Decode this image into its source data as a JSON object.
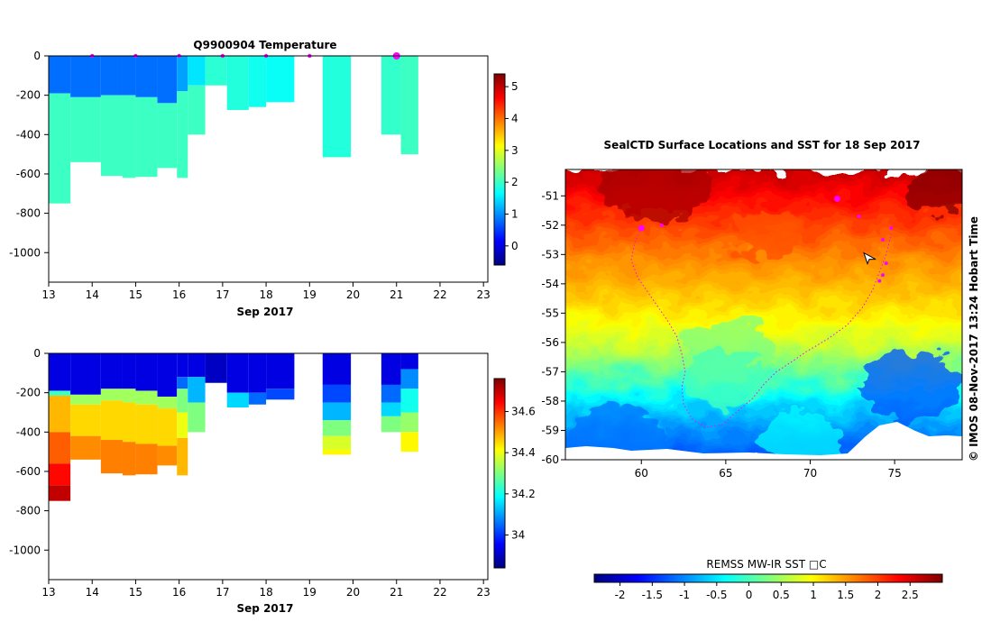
{
  "chart_data": [
    {
      "type": "heatmap",
      "title": "Q9900904  Temperature",
      "xlabel": "Sep 2017",
      "x_ticks": [
        13,
        14,
        15,
        16,
        17,
        18,
        19,
        20,
        21,
        22,
        23
      ],
      "y_ticks": [
        0,
        -200,
        -400,
        -600,
        -800,
        -1000
      ],
      "xlim": [
        13,
        23.1
      ],
      "ylim": [
        -1150,
        0
      ],
      "colorbar": {
        "ticks": [
          0,
          1,
          2,
          3,
          4,
          5
        ],
        "range": [
          -0.6,
          5.4
        ],
        "colormap": "jet"
      },
      "surface_markers": [
        14.0,
        15.0,
        16.0,
        17.0,
        18.0,
        19.0,
        21.0
      ],
      "profiles": [
        {
          "x0": 13.0,
          "x1": 13.5,
          "depth": 750,
          "layers": [
            [
              0,
              190,
              0.8
            ],
            [
              190,
              750,
              2.0
            ]
          ]
        },
        {
          "x0": 13.5,
          "x1": 14.2,
          "depth": 540,
          "layers": [
            [
              0,
              210,
              0.8
            ],
            [
              210,
              540,
              2.0
            ]
          ]
        },
        {
          "x0": 14.2,
          "x1": 14.7,
          "depth": 610,
          "layers": [
            [
              0,
              200,
              0.8
            ],
            [
              200,
              610,
              2.0
            ]
          ]
        },
        {
          "x0": 14.7,
          "x1": 15.0,
          "depth": 620,
          "layers": [
            [
              0,
              200,
              0.8
            ],
            [
              200,
              620,
              2.0
            ]
          ]
        },
        {
          "x0": 15.0,
          "x1": 15.5,
          "depth": 615,
          "layers": [
            [
              0,
              210,
              0.8
            ],
            [
              210,
              615,
              2.0
            ]
          ]
        },
        {
          "x0": 15.5,
          "x1": 15.95,
          "depth": 570,
          "layers": [
            [
              0,
              240,
              0.8
            ],
            [
              240,
              570,
              2.0
            ]
          ]
        },
        {
          "x0": 15.95,
          "x1": 16.2,
          "depth": 620,
          "layers": [
            [
              0,
              180,
              1.1
            ],
            [
              180,
              620,
              2.0
            ]
          ]
        },
        {
          "x0": 16.2,
          "x1": 16.6,
          "depth": 400,
          "layers": [
            [
              0,
              150,
              1.5
            ],
            [
              150,
              400,
              2.0
            ]
          ]
        },
        {
          "x0": 16.6,
          "x1": 17.1,
          "depth": 150,
          "layers": [
            [
              0,
              150,
              1.9
            ]
          ]
        },
        {
          "x0": 17.1,
          "x1": 17.6,
          "depth": 275,
          "layers": [
            [
              0,
              275,
              1.85
            ]
          ]
        },
        {
          "x0": 17.6,
          "x1": 18.0,
          "depth": 260,
          "layers": [
            [
              0,
              260,
              1.75
            ]
          ]
        },
        {
          "x0": 18.0,
          "x1": 18.65,
          "depth": 235,
          "layers": [
            [
              0,
              235,
              1.7
            ]
          ]
        },
        {
          "x0": 19.3,
          "x1": 19.95,
          "depth": 515,
          "layers": [
            [
              0,
              515,
              1.85
            ]
          ]
        },
        {
          "x0": 20.65,
          "x1": 21.1,
          "depth": 400,
          "layers": [
            [
              0,
              400,
              1.95
            ]
          ]
        },
        {
          "x0": 21.1,
          "x1": 21.5,
          "depth": 500,
          "layers": [
            [
              0,
              500,
              2.0
            ]
          ]
        }
      ]
    },
    {
      "type": "heatmap",
      "title": "",
      "xlabel": "Sep 2017",
      "x_ticks": [
        13,
        14,
        15,
        16,
        17,
        18,
        19,
        20,
        21,
        22,
        23
      ],
      "y_ticks": [
        0,
        -200,
        -400,
        -600,
        -800,
        -1000
      ],
      "xlim": [
        13,
        23.1
      ],
      "ylim": [
        -1150,
        0
      ],
      "colorbar": {
        "ticks": [
          34,
          34.2,
          34.4,
          34.6
        ],
        "range": [
          33.84,
          34.76
        ],
        "colormap": "jet"
      },
      "profiles": [
        {
          "x0": 13.0,
          "x1": 13.5,
          "depth": 750,
          "layers": [
            [
              0,
              190,
              33.93
            ],
            [
              190,
              215,
              34.24
            ],
            [
              215,
              400,
              34.48
            ],
            [
              400,
              560,
              34.56
            ],
            [
              560,
              670,
              34.64
            ],
            [
              670,
              750,
              34.7
            ]
          ]
        },
        {
          "x0": 13.5,
          "x1": 14.2,
          "depth": 540,
          "layers": [
            [
              0,
              210,
              33.93
            ],
            [
              210,
              260,
              34.33
            ],
            [
              260,
              420,
              34.45
            ],
            [
              420,
              540,
              34.52
            ]
          ]
        },
        {
          "x0": 14.2,
          "x1": 14.7,
          "depth": 610,
          "layers": [
            [
              0,
              180,
              33.93
            ],
            [
              180,
              240,
              34.33
            ],
            [
              240,
              440,
              34.45
            ],
            [
              440,
              610,
              34.53
            ]
          ]
        },
        {
          "x0": 14.7,
          "x1": 15.0,
          "depth": 620,
          "layers": [
            [
              0,
              180,
              33.93
            ],
            [
              180,
              250,
              34.33
            ],
            [
              250,
              450,
              34.45
            ],
            [
              450,
              620,
              34.53
            ]
          ]
        },
        {
          "x0": 15.0,
          "x1": 15.5,
          "depth": 615,
          "layers": [
            [
              0,
              190,
              33.93
            ],
            [
              190,
              260,
              34.33
            ],
            [
              260,
              460,
              34.45
            ],
            [
              460,
              615,
              34.53
            ]
          ]
        },
        {
          "x0": 15.5,
          "x1": 15.95,
          "depth": 570,
          "layers": [
            [
              0,
              220,
              33.93
            ],
            [
              220,
              280,
              34.33
            ],
            [
              280,
              470,
              34.45
            ],
            [
              470,
              570,
              34.52
            ]
          ]
        },
        {
          "x0": 15.95,
          "x1": 16.2,
          "depth": 620,
          "layers": [
            [
              0,
              120,
              33.93
            ],
            [
              120,
              180,
              34.05
            ],
            [
              180,
              300,
              34.3
            ],
            [
              300,
              430,
              34.4
            ],
            [
              430,
              620,
              34.48
            ]
          ]
        },
        {
          "x0": 16.2,
          "x1": 16.6,
          "depth": 400,
          "layers": [
            [
              0,
              120,
              33.93
            ],
            [
              120,
              250,
              34.12
            ],
            [
              250,
              400,
              34.3
            ]
          ]
        },
        {
          "x0": 16.6,
          "x1": 17.1,
          "depth": 150,
          "layers": [
            [
              0,
              150,
              33.9
            ]
          ]
        },
        {
          "x0": 17.1,
          "x1": 17.6,
          "depth": 275,
          "layers": [
            [
              0,
              200,
              33.93
            ],
            [
              200,
              275,
              34.15
            ]
          ]
        },
        {
          "x0": 17.6,
          "x1": 18.0,
          "depth": 260,
          "layers": [
            [
              0,
              200,
              33.93
            ],
            [
              200,
              260,
              34.05
            ]
          ]
        },
        {
          "x0": 18.0,
          "x1": 18.65,
          "depth": 235,
          "layers": [
            [
              0,
              180,
              33.93
            ],
            [
              180,
              235,
              34.02
            ]
          ]
        },
        {
          "x0": 19.3,
          "x1": 19.95,
          "depth": 515,
          "layers": [
            [
              0,
              160,
              33.93
            ],
            [
              160,
              250,
              34.02
            ],
            [
              250,
              340,
              34.12
            ],
            [
              340,
              420,
              34.3
            ],
            [
              420,
              490,
              34.38
            ],
            [
              490,
              515,
              34.42
            ]
          ]
        },
        {
          "x0": 20.65,
          "x1": 21.1,
          "depth": 400,
          "layers": [
            [
              0,
              160,
              33.93
            ],
            [
              160,
              250,
              34.05
            ],
            [
              250,
              320,
              34.15
            ],
            [
              320,
              400,
              34.3
            ]
          ]
        },
        {
          "x0": 21.1,
          "x1": 21.5,
          "depth": 500,
          "layers": [
            [
              0,
              80,
              33.93
            ],
            [
              80,
              180,
              34.08
            ],
            [
              180,
              300,
              34.2
            ],
            [
              300,
              400,
              34.32
            ],
            [
              400,
              500,
              34.42
            ]
          ]
        }
      ]
    },
    {
      "type": "heatmap",
      "title": "SealCTD Surface Locations and SST for 18 Sep 2017",
      "xlabel": "",
      "ylabel": "",
      "xlim": [
        55.5,
        79
      ],
      "ylim": [
        -60,
        -50.1
      ],
      "x_ticks": [
        60,
        65,
        70,
        75
      ],
      "y_ticks": [
        -51,
        -52,
        -53,
        -54,
        -55,
        -56,
        -57,
        -58,
        -59,
        -60
      ],
      "colorbar": {
        "label": "REMSS MW-IR SST □C",
        "ticks": [
          "-2",
          "-1.5",
          "-1",
          "-0.5",
          "0",
          "0.5",
          "1",
          "1.5",
          "2",
          "2.5"
        ],
        "range": [
          -2.4,
          3.0
        ],
        "colormap": "jet",
        "orientation": "horizontal"
      },
      "sst_gradient": [
        {
          "lat": -50.1,
          "sst": 2.6
        },
        {
          "lat": -51.5,
          "sst": 2.1
        },
        {
          "lat": -53.0,
          "sst": 1.6
        },
        {
          "lat": -54.5,
          "sst": 1.2
        },
        {
          "lat": -56.0,
          "sst": 0.7
        },
        {
          "lat": -57.0,
          "sst": 0.1
        },
        {
          "lat": -58.0,
          "sst": -0.5
        },
        {
          "lat": -59.0,
          "sst": -1.0
        },
        {
          "lat": -60.0,
          "sst": -1.3
        }
      ],
      "surface_locations": [
        {
          "lon": 60.0,
          "lat": -52.1
        },
        {
          "lon": 61.2,
          "lat": -52.0
        },
        {
          "lon": 71.6,
          "lat": -51.1
        },
        {
          "lon": 72.9,
          "lat": -51.7
        },
        {
          "lon": 74.3,
          "lat": -52.5
        },
        {
          "lon": 74.8,
          "lat": -52.1
        },
        {
          "lon": 74.5,
          "lat": -53.3
        },
        {
          "lon": 74.1,
          "lat": -53.9
        },
        {
          "lon": 74.3,
          "lat": -53.7
        }
      ],
      "track": [
        [
          60.0,
          -52.1
        ],
        [
          59.6,
          -52.6
        ],
        [
          59.4,
          -53.2
        ],
        [
          59.8,
          -53.8
        ],
        [
          60.4,
          -54.3
        ],
        [
          61.0,
          -54.8
        ],
        [
          61.6,
          -55.3
        ],
        [
          62.1,
          -55.8
        ],
        [
          62.4,
          -56.4
        ],
        [
          62.6,
          -57.0
        ],
        [
          62.4,
          -57.5
        ],
        [
          62.5,
          -58.1
        ],
        [
          63.0,
          -58.6
        ],
        [
          63.8,
          -58.9
        ],
        [
          64.8,
          -58.8
        ],
        [
          65.8,
          -58.3
        ],
        [
          66.6,
          -57.9
        ],
        [
          67.3,
          -57.4
        ],
        [
          68.0,
          -57.0
        ],
        [
          68.8,
          -56.7
        ],
        [
          69.8,
          -56.3
        ],
        [
          71.0,
          -55.9
        ],
        [
          72.2,
          -55.4
        ],
        [
          73.1,
          -54.8
        ],
        [
          73.7,
          -54.2
        ],
        [
          74.1,
          -53.6
        ],
        [
          74.5,
          -53.0
        ],
        [
          74.8,
          -52.3
        ]
      ],
      "current_position": {
        "lon": 73.5,
        "lat": -53.1
      }
    }
  ],
  "side_label": "©  IMOS 08-Nov-2017 13:24 Hobart Time"
}
